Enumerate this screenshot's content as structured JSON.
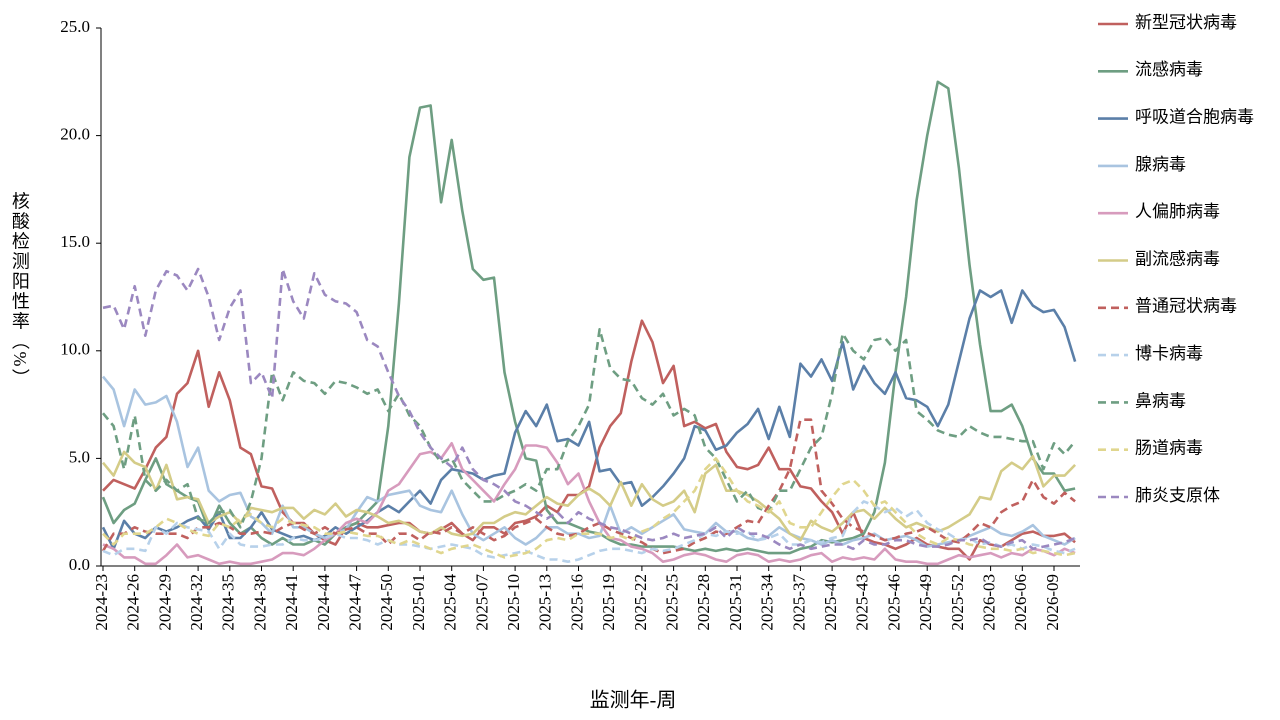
{
  "chart_data": {
    "type": "line",
    "x_label": "监测年-周",
    "y_label": "核酸检测阳性率（%）",
    "categories": [
      "2024-23",
      null,
      null,
      "2024-26",
      null,
      null,
      "2024-29",
      null,
      null,
      "2024-32",
      null,
      null,
      "2024-35",
      null,
      null,
      "2024-38",
      null,
      null,
      "2024-41",
      null,
      null,
      "2024-44",
      null,
      null,
      "2024-47",
      null,
      null,
      "2024-50",
      null,
      null,
      "2025-01",
      null,
      null,
      "2025-04",
      null,
      null,
      "2025-07",
      null,
      null,
      "2025-10",
      null,
      null,
      "2025-13",
      null,
      null,
      "2025-16",
      null,
      null,
      "2025-19",
      null,
      null,
      "2025-22",
      null,
      null,
      "2025-25",
      null,
      null,
      "2025-28",
      null,
      null,
      "2025-31",
      null,
      null,
      "2025-34",
      null,
      null,
      "2025-37",
      null,
      null,
      "2025-40",
      null,
      null,
      "2025-43",
      null,
      null,
      "2025-46",
      null,
      null,
      "2025-49",
      null,
      null,
      "2025-52",
      null,
      null,
      "2026-03",
      null,
      null,
      "2026-06",
      null,
      null,
      "2026-09",
      null,
      null
    ],
    "ylim": [
      0,
      25
    ],
    "yticks": [
      {
        "value": 0,
        "label": "0.0"
      },
      {
        "value": 5,
        "label": "5.0"
      },
      {
        "value": 10,
        "label": "10.0"
      },
      {
        "value": 15,
        "label": "15.0"
      },
      {
        "value": 20,
        "label": "20.0"
      },
      {
        "value": 25,
        "label": "25.0"
      }
    ],
    "legend": "right",
    "series": [
      {
        "name": "新型冠状病毒",
        "color": "#c0605e",
        "line_style": "solid",
        "values": [
          3.5,
          4.0,
          3.8,
          3.6,
          4.5,
          5.5,
          6.0,
          8.0,
          8.5,
          10.0,
          7.4,
          9.0,
          7.7,
          5.5,
          5.2,
          3.7,
          3.6,
          2.5,
          2.0,
          2.0,
          1.5,
          1.2,
          1.0,
          1.8,
          2.0,
          1.8,
          1.8,
          1.9,
          2.0,
          2.0,
          1.6,
          1.5,
          1.7,
          2.0,
          1.5,
          1.2,
          1.8,
          1.8,
          1.5,
          2.0,
          2.1,
          2.3,
          2.8,
          2.5,
          3.3,
          3.3,
          3.7,
          5.5,
          6.5,
          7.1,
          9.5,
          11.4,
          10.4,
          8.5,
          9.3,
          6.5,
          6.7,
          6.4,
          6.6,
          5.3,
          4.6,
          4.5,
          4.7,
          5.5,
          4.5,
          4.5,
          3.7,
          3.6,
          3.0,
          2.5,
          1.5,
          2.5,
          1.3,
          1.1,
          1.0,
          0.8,
          1.0,
          1.3,
          1.0,
          0.9,
          0.8,
          0.8,
          0.3,
          1.2,
          1.0,
          0.9,
          1.2,
          1.5,
          1.6,
          1.4,
          1.4,
          1.5,
          1.1
        ]
      },
      {
        "name": "流感病毒",
        "color": "#6e9e82",
        "line_style": "solid",
        "values": [
          3.2,
          2.0,
          2.6,
          2.9,
          4.0,
          5.0,
          3.8,
          3.5,
          3.2,
          3.0,
          1.7,
          2.8,
          2.0,
          1.5,
          1.8,
          1.3,
          1.0,
          1.3,
          1.0,
          1.0,
          1.2,
          1.0,
          1.5,
          1.8,
          2.0,
          2.5,
          3.0,
          6.5,
          12.2,
          19.0,
          21.3,
          21.4,
          16.9,
          19.8,
          16.5,
          13.8,
          13.3,
          13.4,
          9.0,
          6.7,
          5.0,
          4.9,
          2.6,
          2.0,
          2.0,
          1.8,
          1.6,
          1.5,
          1.2,
          1.0,
          1.0,
          0.9,
          0.9,
          0.9,
          0.9,
          0.8,
          0.7,
          0.8,
          0.7,
          0.8,
          0.7,
          0.8,
          0.7,
          0.6,
          0.6,
          0.6,
          0.8,
          0.9,
          1.2,
          1.1,
          1.2,
          1.3,
          1.5,
          2.5,
          4.8,
          9.0,
          12.5,
          17.0,
          20.0,
          22.5,
          22.2,
          18.5,
          14.0,
          10.3,
          7.2,
          7.2,
          7.5,
          6.5,
          5.0,
          4.3,
          4.3,
          3.5,
          3.6
        ]
      },
      {
        "name": "呼吸道合胞病毒",
        "color": "#5b7fa8",
        "line_style": "solid",
        "values": [
          1.8,
          0.8,
          2.1,
          1.5,
          1.3,
          1.8,
          1.6,
          1.8,
          2.1,
          2.3,
          1.7,
          2.5,
          1.3,
          1.3,
          1.8,
          2.5,
          1.7,
          1.5,
          1.3,
          1.4,
          1.2,
          1.4,
          1.8,
          1.5,
          1.8,
          2.1,
          2.5,
          2.8,
          2.5,
          3.0,
          3.5,
          2.9,
          4.0,
          4.5,
          4.4,
          4.3,
          4.0,
          4.2,
          4.3,
          6.2,
          7.2,
          6.5,
          7.5,
          5.8,
          5.9,
          5.6,
          6.7,
          4.4,
          4.5,
          3.8,
          3.9,
          2.8,
          3.2,
          3.7,
          4.3,
          5.0,
          6.5,
          6.3,
          5.4,
          5.6,
          6.2,
          6.6,
          7.3,
          5.9,
          7.4,
          6.0,
          9.4,
          8.8,
          9.6,
          8.6,
          10.4,
          8.2,
          9.3,
          8.5,
          8.0,
          9.0,
          7.8,
          7.7,
          7.4,
          6.5,
          7.5,
          9.5,
          11.5,
          12.8,
          12.5,
          12.8,
          11.3,
          12.8,
          12.1,
          11.8,
          11.9,
          11.1,
          9.5
        ]
      },
      {
        "name": "腺病毒",
        "color": "#a9c4e0",
        "line_style": "solid",
        "values": [
          8.8,
          8.2,
          6.5,
          8.2,
          7.5,
          7.6,
          7.9,
          6.7,
          4.6,
          5.5,
          3.5,
          3.0,
          3.3,
          3.4,
          2.3,
          2.0,
          1.5,
          2.8,
          1.8,
          1.8,
          1.5,
          1.3,
          1.5,
          1.7,
          2.5,
          3.2,
          3.0,
          3.3,
          3.4,
          3.5,
          2.8,
          2.6,
          2.5,
          3.5,
          2.4,
          1.5,
          1.2,
          1.5,
          1.8,
          1.3,
          1.0,
          1.3,
          1.8,
          1.8,
          1.5,
          1.5,
          1.3,
          1.4,
          2.8,
          1.5,
          1.8,
          1.5,
          1.8,
          2.1,
          2.4,
          1.7,
          1.6,
          1.5,
          2.0,
          1.6,
          1.6,
          1.3,
          1.2,
          1.4,
          1.8,
          1.5,
          1.3,
          1.2,
          1.0,
          1.2,
          1.0,
          1.2,
          1.3,
          1.5,
          1.2,
          1.3,
          1.4,
          1.2,
          0.9,
          1.0,
          1.1,
          1.2,
          1.4,
          1.6,
          1.8,
          1.5,
          1.4,
          1.6,
          1.9,
          1.4,
          1.2,
          1.0,
          1.3
        ]
      },
      {
        "name": "人偏肺病毒",
        "color": "#d79bbd",
        "line_style": "solid",
        "values": [
          1.0,
          0.8,
          0.4,
          0.4,
          0.1,
          0.1,
          0.5,
          1.0,
          0.4,
          0.5,
          0.3,
          0.1,
          0.2,
          0.1,
          0.1,
          0.2,
          0.3,
          0.6,
          0.6,
          0.5,
          0.8,
          1.2,
          1.5,
          2.0,
          2.2,
          2.0,
          2.5,
          3.5,
          3.8,
          4.5,
          5.2,
          5.3,
          5.0,
          5.7,
          4.5,
          4.0,
          3.5,
          3.0,
          3.8,
          4.5,
          5.6,
          5.6,
          5.5,
          4.8,
          3.8,
          4.3,
          3.0,
          2.0,
          1.3,
          1.2,
          0.9,
          0.8,
          0.6,
          0.2,
          0.3,
          0.5,
          0.6,
          0.5,
          0.3,
          0.2,
          0.5,
          0.6,
          0.5,
          0.2,
          0.3,
          0.2,
          0.3,
          0.5,
          0.6,
          0.2,
          0.4,
          0.3,
          0.4,
          0.3,
          0.8,
          0.3,
          0.2,
          0.2,
          0.1,
          0.1,
          0.3,
          0.5,
          0.4,
          0.5,
          0.6,
          0.4,
          0.6,
          0.5,
          0.8,
          0.7,
          0.5,
          0.8,
          0.6
        ]
      },
      {
        "name": "副流感病毒",
        "color": "#d4cc88",
        "line_style": "solid",
        "values": [
          4.8,
          4.2,
          5.3,
          4.8,
          4.6,
          3.5,
          4.7,
          3.1,
          3.2,
          3.1,
          2.0,
          2.3,
          2.5,
          2.0,
          2.7,
          2.6,
          2.5,
          2.7,
          2.7,
          2.2,
          2.6,
          2.4,
          2.9,
          2.3,
          2.6,
          2.5,
          2.3,
          2.0,
          2.1,
          1.9,
          1.6,
          1.5,
          1.8,
          1.5,
          1.4,
          1.5,
          2.0,
          2.0,
          2.3,
          2.5,
          2.4,
          2.8,
          3.2,
          2.9,
          2.8,
          3.3,
          3.6,
          3.3,
          2.8,
          3.9,
          2.8,
          3.8,
          3.1,
          2.8,
          3.0,
          3.5,
          2.5,
          4.3,
          4.7,
          3.5,
          3.5,
          3.3,
          3.0,
          2.6,
          2.2,
          1.5,
          1.2,
          2.1,
          1.8,
          1.6,
          2.0,
          2.5,
          2.6,
          2.2,
          2.7,
          2.2,
          1.8,
          2.0,
          1.8,
          1.6,
          1.8,
          2.1,
          2.4,
          3.2,
          3.1,
          4.4,
          4.8,
          4.5,
          5.1,
          3.7,
          4.2,
          4.2,
          4.7
        ]
      },
      {
        "name": "普通冠状病毒",
        "color": "#c0605e",
        "line_style": "dashed",
        "values": [
          0.7,
          1.5,
          1.5,
          1.8,
          1.6,
          1.5,
          1.5,
          1.5,
          1.3,
          1.8,
          1.8,
          2.0,
          1.8,
          1.5,
          1.5,
          1.6,
          1.5,
          1.8,
          2.0,
          1.7,
          1.5,
          1.8,
          1.5,
          1.7,
          1.8,
          1.5,
          1.5,
          1.0,
          1.5,
          1.5,
          1.2,
          1.6,
          1.5,
          1.8,
          1.5,
          1.8,
          1.5,
          1.2,
          1.4,
          1.8,
          2.0,
          2.2,
          1.8,
          1.5,
          1.4,
          1.5,
          1.8,
          2.0,
          1.7,
          1.5,
          1.3,
          1.1,
          0.8,
          0.6,
          0.7,
          0.8,
          1.1,
          1.3,
          1.6,
          1.5,
          1.8,
          2.1,
          2.0,
          2.8,
          3.5,
          4.5,
          6.8,
          6.8,
          3.5,
          2.9,
          2.2,
          1.8,
          1.6,
          1.4,
          1.2,
          1.3,
          1.5,
          1.6,
          1.8,
          1.5,
          1.2,
          1.1,
          1.5,
          2.0,
          1.8,
          2.5,
          2.8,
          3.0,
          4.0,
          3.2,
          2.9,
          3.4,
          3.0
        ]
      },
      {
        "name": "博卡病毒",
        "color": "#b7d1ea",
        "line_style": "dashed",
        "values": [
          0.7,
          0.5,
          0.8,
          0.8,
          0.7,
          1.8,
          1.5,
          2.0,
          1.8,
          1.7,
          1.6,
          0.8,
          1.5,
          1.0,
          0.9,
          0.9,
          1.0,
          1.0,
          1.3,
          1.2,
          1.2,
          1.3,
          1.5,
          1.3,
          1.3,
          1.2,
          1.0,
          1.2,
          1.0,
          1.0,
          0.9,
          0.8,
          0.9,
          1.0,
          0.9,
          0.8,
          0.5,
          0.4,
          0.5,
          0.6,
          0.7,
          0.5,
          0.3,
          0.3,
          0.2,
          0.3,
          0.5,
          0.7,
          0.8,
          0.8,
          0.7,
          0.6,
          0.8,
          0.7,
          0.8,
          1.0,
          1.2,
          1.5,
          1.4,
          1.6,
          1.5,
          1.6,
          1.2,
          1.3,
          1.5,
          1.0,
          1.0,
          1.2,
          1.1,
          1.3,
          1.4,
          2.5,
          3.0,
          2.8,
          2.5,
          2.7,
          2.3,
          2.6,
          2.0,
          1.7,
          1.5,
          1.2,
          1.3,
          1.0,
          1.1,
          0.9,
          1.0,
          0.8,
          1.0,
          0.9,
          0.7,
          0.6,
          0.8
        ]
      },
      {
        "name": "鼻病毒",
        "color": "#6e9e82",
        "line_style": "dashed",
        "values": [
          7.1,
          6.5,
          4.5,
          7.0,
          4.0,
          3.5,
          4.0,
          3.5,
          3.8,
          2.2,
          2.0,
          2.5,
          2.6,
          1.8,
          3.0,
          5.0,
          9.0,
          7.7,
          9.0,
          8.6,
          8.5,
          8.0,
          8.6,
          8.5,
          8.3,
          8.0,
          8.2,
          7.2,
          8.0,
          7.0,
          6.5,
          5.5,
          4.8,
          5.0,
          4.0,
          3.5,
          3.0,
          3.0,
          3.3,
          3.5,
          3.8,
          3.5,
          4.5,
          4.5,
          5.8,
          6.5,
          7.5,
          11.0,
          9.2,
          8.7,
          8.6,
          7.8,
          7.5,
          8.0,
          7.0,
          7.3,
          7.0,
          5.5,
          5.0,
          4.0,
          3.0,
          3.5,
          2.7,
          2.5,
          3.5,
          3.5,
          4.5,
          5.5,
          6.0,
          8.0,
          10.8,
          10.0,
          9.6,
          10.5,
          10.6,
          10.0,
          10.5,
          7.2,
          6.8,
          6.3,
          6.1,
          6.0,
          6.5,
          6.2,
          6.0,
          6.0,
          5.9,
          5.8,
          5.8,
          4.5,
          5.7,
          5.2,
          5.8
        ]
      },
      {
        "name": "肠道病毒",
        "color": "#e0d68e",
        "line_style": "dashed",
        "values": [
          1.5,
          1.0,
          1.5,
          1.5,
          1.5,
          1.8,
          2.2,
          2.0,
          1.7,
          1.5,
          1.4,
          2.0,
          1.8,
          2.2,
          2.4,
          2.0,
          1.8,
          2.2,
          2.0,
          1.9,
          1.8,
          1.5,
          1.5,
          1.6,
          1.5,
          1.4,
          1.4,
          1.2,
          1.0,
          1.2,
          1.0,
          0.8,
          0.6,
          0.8,
          0.9,
          1.0,
          0.8,
          0.6,
          0.4,
          0.5,
          0.6,
          0.8,
          1.2,
          1.3,
          1.2,
          1.5,
          1.5,
          1.5,
          1.3,
          1.4,
          1.2,
          1.6,
          1.8,
          2.2,
          2.5,
          3.0,
          3.5,
          4.5,
          5.0,
          4.3,
          3.5,
          3.0,
          2.8,
          2.5,
          3.0,
          2.0,
          1.8,
          1.8,
          2.5,
          3.2,
          3.8,
          4.0,
          3.5,
          2.8,
          3.0,
          2.5,
          2.0,
          1.5,
          1.2,
          1.0,
          1.3,
          1.2,
          1.0,
          0.9,
          0.8,
          0.8,
          0.7,
          0.8,
          0.6,
          0.7,
          0.6,
          0.5,
          0.6
        ]
      },
      {
        "name": "肺炎支原体",
        "color": "#9b88c0",
        "line_style": "dashed",
        "values": [
          12.0,
          12.1,
          11.0,
          13.0,
          10.7,
          12.8,
          13.7,
          13.5,
          12.8,
          13.8,
          12.5,
          10.5,
          12.0,
          12.8,
          8.5,
          9.0,
          7.8,
          13.8,
          12.3,
          11.5,
          13.6,
          12.6,
          12.3,
          12.2,
          11.8,
          10.5,
          10.2,
          9.0,
          7.9,
          7.2,
          6.2,
          5.5,
          5.0,
          4.6,
          5.5,
          4.5,
          4.0,
          3.8,
          3.5,
          3.0,
          2.8,
          2.5,
          2.2,
          2.5,
          2.0,
          2.5,
          2.2,
          2.0,
          1.8,
          1.7,
          1.5,
          1.3,
          1.2,
          1.3,
          1.5,
          1.3,
          1.4,
          1.5,
          1.8,
          1.3,
          1.8,
          1.5,
          1.5,
          1.3,
          1.0,
          0.8,
          1.0,
          0.8,
          0.9,
          1.0,
          1.0,
          0.8,
          1.2,
          1.0,
          1.0,
          1.2,
          1.2,
          1.0,
          0.9,
          0.9,
          1.0,
          1.2,
          1.2,
          1.3,
          1.0,
          0.9,
          1.1,
          1.2,
          0.8,
          0.9,
          1.0,
          1.1,
          1.3
        ]
      }
    ]
  }
}
